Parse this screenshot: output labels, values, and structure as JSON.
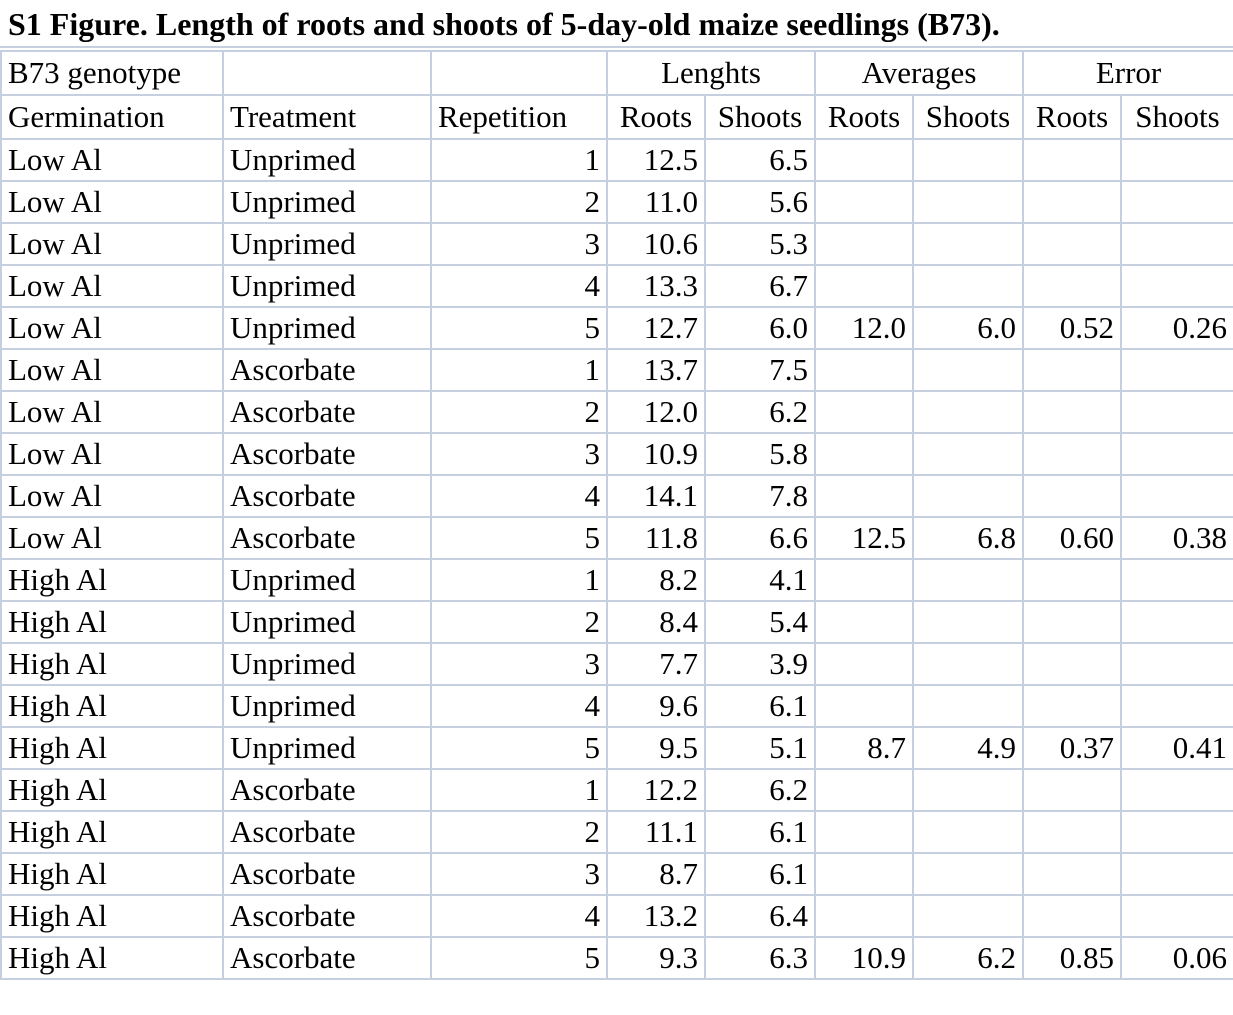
{
  "title": "S1 Figure. Length of roots and shoots of 5-day-old maize seedlings (B73).",
  "header_row1": {
    "genotype": "B73 genotype",
    "lengths": "Lenghts",
    "averages": "Averages",
    "error": "Error"
  },
  "header_row2": {
    "germination": "Germination",
    "treatment": "Treatment",
    "repetition": "Repetition",
    "roots1": "Roots",
    "shoots1": "Shoots",
    "roots2": "Roots",
    "shoots2": "Shoots",
    "roots3": "Roots",
    "shoots3": "Shoots"
  },
  "rows": [
    {
      "germination": "Low Al",
      "treatment": "Unprimed",
      "repetition": "1",
      "roots": "12.5",
      "shoots": "6.5",
      "avg_roots": "",
      "avg_shoots": "",
      "err_roots": "",
      "err_shoots": ""
    },
    {
      "germination": "Low Al",
      "treatment": "Unprimed",
      "repetition": "2",
      "roots": "11.0",
      "shoots": "5.6",
      "avg_roots": "",
      "avg_shoots": "",
      "err_roots": "",
      "err_shoots": ""
    },
    {
      "germination": "Low Al",
      "treatment": "Unprimed",
      "repetition": "3",
      "roots": "10.6",
      "shoots": "5.3",
      "avg_roots": "",
      "avg_shoots": "",
      "err_roots": "",
      "err_shoots": ""
    },
    {
      "germination": "Low Al",
      "treatment": "Unprimed",
      "repetition": "4",
      "roots": "13.3",
      "shoots": "6.7",
      "avg_roots": "",
      "avg_shoots": "",
      "err_roots": "",
      "err_shoots": ""
    },
    {
      "germination": "Low Al",
      "treatment": "Unprimed",
      "repetition": "5",
      "roots": "12.7",
      "shoots": "6.0",
      "avg_roots": "12.0",
      "avg_shoots": "6.0",
      "err_roots": "0.52",
      "err_shoots": "0.26"
    },
    {
      "germination": "Low Al",
      "treatment": "Ascorbate",
      "repetition": "1",
      "roots": "13.7",
      "shoots": "7.5",
      "avg_roots": "",
      "avg_shoots": "",
      "err_roots": "",
      "err_shoots": ""
    },
    {
      "germination": "Low Al",
      "treatment": "Ascorbate",
      "repetition": "2",
      "roots": "12.0",
      "shoots": "6.2",
      "avg_roots": "",
      "avg_shoots": "",
      "err_roots": "",
      "err_shoots": ""
    },
    {
      "germination": "Low Al",
      "treatment": "Ascorbate",
      "repetition": "3",
      "roots": "10.9",
      "shoots": "5.8",
      "avg_roots": "",
      "avg_shoots": "",
      "err_roots": "",
      "err_shoots": ""
    },
    {
      "germination": "Low Al",
      "treatment": "Ascorbate",
      "repetition": "4",
      "roots": "14.1",
      "shoots": "7.8",
      "avg_roots": "",
      "avg_shoots": "",
      "err_roots": "",
      "err_shoots": ""
    },
    {
      "germination": "Low Al",
      "treatment": "Ascorbate",
      "repetition": "5",
      "roots": "11.8",
      "shoots": "6.6",
      "avg_roots": "12.5",
      "avg_shoots": "6.8",
      "err_roots": "0.60",
      "err_shoots": "0.38"
    },
    {
      "germination": "High Al",
      "treatment": "Unprimed",
      "repetition": "1",
      "roots": "8.2",
      "shoots": "4.1",
      "avg_roots": "",
      "avg_shoots": "",
      "err_roots": "",
      "err_shoots": ""
    },
    {
      "germination": "High Al",
      "treatment": "Unprimed",
      "repetition": "2",
      "roots": "8.4",
      "shoots": "5.4",
      "avg_roots": "",
      "avg_shoots": "",
      "err_roots": "",
      "err_shoots": ""
    },
    {
      "germination": "High Al",
      "treatment": "Unprimed",
      "repetition": "3",
      "roots": "7.7",
      "shoots": "3.9",
      "avg_roots": "",
      "avg_shoots": "",
      "err_roots": "",
      "err_shoots": ""
    },
    {
      "germination": "High Al",
      "treatment": "Unprimed",
      "repetition": "4",
      "roots": "9.6",
      "shoots": "6.1",
      "avg_roots": "",
      "avg_shoots": "",
      "err_roots": "",
      "err_shoots": ""
    },
    {
      "germination": "High Al",
      "treatment": "Unprimed",
      "repetition": "5",
      "roots": "9.5",
      "shoots": "5.1",
      "avg_roots": "8.7",
      "avg_shoots": "4.9",
      "err_roots": "0.37",
      "err_shoots": "0.41"
    },
    {
      "germination": "High Al",
      "treatment": "Ascorbate",
      "repetition": "1",
      "roots": "12.2",
      "shoots": "6.2",
      "avg_roots": "",
      "avg_shoots": "",
      "err_roots": "",
      "err_shoots": ""
    },
    {
      "germination": "High Al",
      "treatment": "Ascorbate",
      "repetition": "2",
      "roots": "11.1",
      "shoots": "6.1",
      "avg_roots": "",
      "avg_shoots": "",
      "err_roots": "",
      "err_shoots": ""
    },
    {
      "germination": "High Al",
      "treatment": "Ascorbate",
      "repetition": "3",
      "roots": "8.7",
      "shoots": "6.1",
      "avg_roots": "",
      "avg_shoots": "",
      "err_roots": "",
      "err_shoots": ""
    },
    {
      "germination": "High Al",
      "treatment": "Ascorbate",
      "repetition": "4",
      "roots": "13.2",
      "shoots": "6.4",
      "avg_roots": "",
      "avg_shoots": "",
      "err_roots": "",
      "err_shoots": ""
    },
    {
      "germination": "High Al",
      "treatment": "Ascorbate",
      "repetition": "5",
      "roots": "9.3",
      "shoots": "6.3",
      "avg_roots": "10.9",
      "avg_shoots": "6.2",
      "err_roots": "0.85",
      "err_shoots": "0.06"
    }
  ]
}
